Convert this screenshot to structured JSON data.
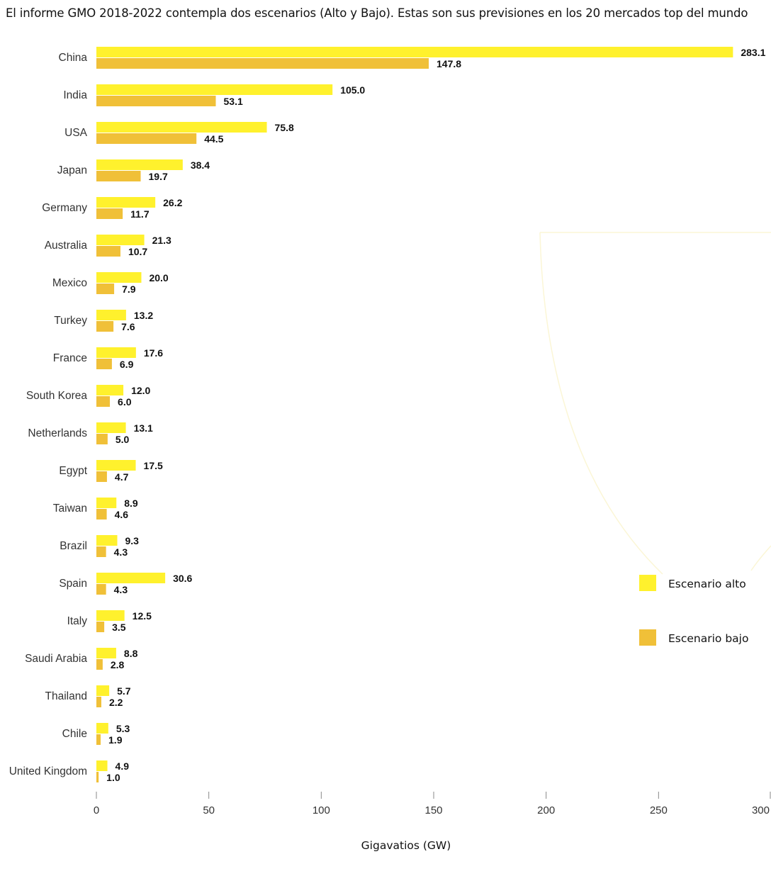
{
  "chart_data": {
    "type": "bar",
    "orientation": "horizontal",
    "title": "El informe GMO 2018-2022 contempla dos escenarios (Alto y Bajo). Estas son sus previsiones en los 20 mercados top del mundo",
    "xlabel": "Gigavatios (GW)",
    "ylabel": "",
    "xlim": [
      0,
      300
    ],
    "xticks": [
      0,
      50,
      100,
      150,
      200,
      250,
      300
    ],
    "grid": false,
    "legend_placement": "right",
    "categories": [
      "China",
      "India",
      "USA",
      "Japan",
      "Germany",
      "Australia",
      "Mexico",
      "Turkey",
      "France",
      "South Korea",
      "Netherlands",
      "Egypt",
      "Taiwan",
      "Brazil",
      "Spain",
      "Italy",
      "Saudi Arabia",
      "Thailand",
      "Chile",
      "United Kingdom"
    ],
    "series": [
      {
        "name": "Escenario alto",
        "color": "#fff12d",
        "values": [
          283.1,
          105.0,
          75.8,
          38.4,
          26.2,
          21.3,
          20.0,
          13.2,
          17.6,
          12.0,
          13.1,
          17.5,
          8.9,
          9.3,
          30.6,
          12.5,
          8.8,
          5.7,
          5.3,
          4.9
        ],
        "labels": [
          "283.1",
          "105.0",
          "75.8",
          "38.4",
          "26.2",
          "21.3",
          "20.0",
          "13.2",
          "17.6",
          "12.0",
          "13.1",
          "17.5",
          "8.9",
          "9.3",
          "30.6",
          "12.5",
          "8.8",
          "5.7",
          "5.3",
          "4.9"
        ]
      },
      {
        "name": "Escenario bajo",
        "color": "#f0c038",
        "values": [
          147.8,
          53.1,
          44.5,
          19.7,
          11.7,
          10.7,
          7.9,
          7.6,
          6.9,
          6.0,
          5.0,
          4.7,
          4.6,
          4.3,
          4.3,
          3.5,
          2.8,
          2.2,
          1.9,
          1.0
        ],
        "labels": [
          "147.8",
          "53.1",
          "44.5",
          "19.7",
          "11.7",
          "10.7",
          "7.9",
          "7.6",
          "6.9",
          "6.0",
          "5.0",
          "4.7",
          "4.6",
          "4.3",
          "4.3",
          "3.5",
          "2.8",
          "2.2",
          "1.9",
          "1.0"
        ]
      }
    ],
    "colors": {
      "axis": "#888888",
      "background_arc": "#fbf6d6"
    }
  }
}
